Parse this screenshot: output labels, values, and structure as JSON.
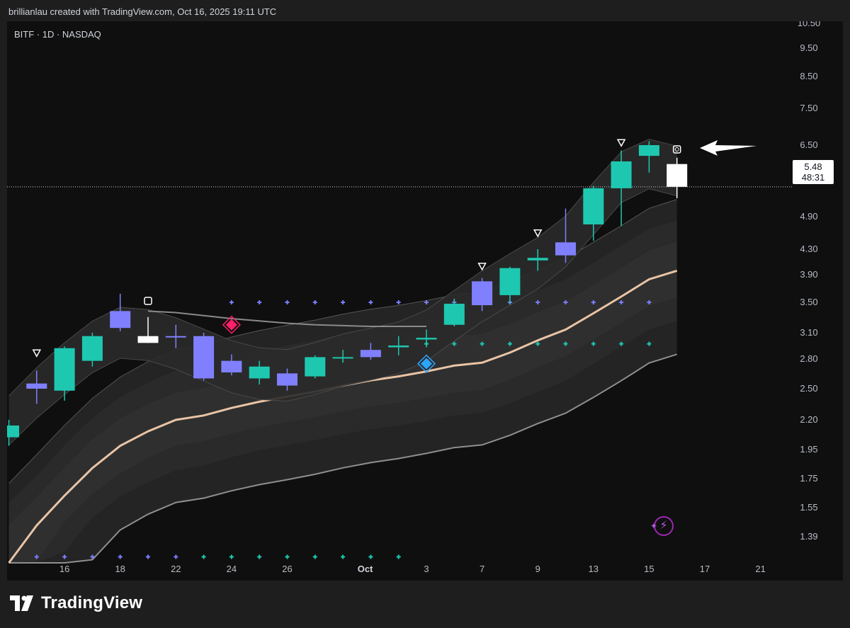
{
  "header": {
    "caption": "brillianlau created with TradingView.com, Oct 16, 2025 19:11 UTC"
  },
  "symbol": "BITF · 1D · NASDAQ",
  "price_tag": {
    "price": "5.48",
    "countdown": "48:31"
  },
  "brand": {
    "name": "TradingView"
  },
  "colors": {
    "background": "#0f0f0f",
    "up_candle": "#1ec8b0",
    "down_candle": "#8080ff",
    "doji_candle": "#ffffff",
    "sma": "#e9c4a6",
    "band_fill": "#3a3a3a",
    "band_line": "#8f8f8f",
    "dots_blue": "#7b7cff",
    "dots_teal": "#1ec8b0",
    "sell_diamond": "#ff1f6a",
    "buy_diamond": "#2aa6ff"
  },
  "chart_data": {
    "type": "candlestick",
    "y_scale": "log",
    "y_ticks": [
      "10.50",
      "9.50",
      "8.50",
      "7.50",
      "6.50",
      "5.90",
      "4.90",
      "4.30",
      "3.90",
      "3.50",
      "3.10",
      "2.80",
      "2.50",
      "2.20",
      "1.95",
      "1.75",
      "1.55",
      "1.39"
    ],
    "x_tick_labels": [
      {
        "i": 2,
        "label": "16"
      },
      {
        "i": 4,
        "label": "18"
      },
      {
        "i": 6,
        "label": "22"
      },
      {
        "i": 8,
        "label": "24"
      },
      {
        "i": 10,
        "label": "26"
      },
      {
        "i": 12.8,
        "label": "Oct"
      },
      {
        "i": 15,
        "label": "3"
      },
      {
        "i": 17,
        "label": "7"
      },
      {
        "i": 19,
        "label": "9"
      },
      {
        "i": 21,
        "label": "13"
      },
      {
        "i": 23,
        "label": "15"
      },
      {
        "i": 25,
        "label": "17"
      },
      {
        "i": 27,
        "label": "21"
      }
    ],
    "candles": [
      {
        "o": 2.05,
        "h": 2.2,
        "l": 1.98,
        "c": 2.15,
        "color": "up"
      },
      {
        "o": 2.5,
        "h": 2.68,
        "l": 2.35,
        "c": 2.55,
        "color": "down"
      },
      {
        "o": 2.48,
        "h": 2.94,
        "l": 2.38,
        "c": 2.92,
        "color": "up"
      },
      {
        "o": 2.78,
        "h": 3.1,
        "l": 2.72,
        "c": 3.06,
        "color": "up"
      },
      {
        "o": 3.38,
        "h": 3.62,
        "l": 3.12,
        "c": 3.16,
        "color": "down"
      },
      {
        "o": 3.06,
        "h": 3.3,
        "l": 2.98,
        "c": 2.98,
        "color": "doji"
      },
      {
        "o": 3.06,
        "h": 3.2,
        "l": 2.92,
        "c": 3.06,
        "color": "doji-down"
      },
      {
        "o": 3.06,
        "h": 3.1,
        "l": 2.58,
        "c": 2.6,
        "color": "down"
      },
      {
        "o": 2.78,
        "h": 2.85,
        "l": 2.63,
        "c": 2.66,
        "color": "down"
      },
      {
        "o": 2.72,
        "h": 2.78,
        "l": 2.54,
        "c": 2.6,
        "color": "up"
      },
      {
        "o": 2.65,
        "h": 2.7,
        "l": 2.48,
        "c": 2.53,
        "color": "down"
      },
      {
        "o": 2.62,
        "h": 2.84,
        "l": 2.6,
        "c": 2.82,
        "color": "up"
      },
      {
        "o": 2.82,
        "h": 2.9,
        "l": 2.76,
        "c": 2.82,
        "color": "doji-up"
      },
      {
        "o": 2.9,
        "h": 2.98,
        "l": 2.79,
        "c": 2.82,
        "color": "down"
      },
      {
        "o": 2.93,
        "h": 3.06,
        "l": 2.84,
        "c": 2.95,
        "color": "up"
      },
      {
        "o": 3.02,
        "h": 3.14,
        "l": 2.93,
        "c": 3.04,
        "color": "up"
      },
      {
        "o": 3.2,
        "h": 3.55,
        "l": 3.18,
        "c": 3.48,
        "color": "up"
      },
      {
        "o": 3.8,
        "h": 3.85,
        "l": 3.38,
        "c": 3.46,
        "color": "down"
      },
      {
        "o": 3.6,
        "h": 4.02,
        "l": 3.48,
        "c": 4.0,
        "color": "up"
      },
      {
        "o": 4.16,
        "h": 4.3,
        "l": 3.96,
        "c": 4.12,
        "color": "up"
      },
      {
        "o": 4.42,
        "h": 5.05,
        "l": 4.08,
        "c": 4.2,
        "color": "down"
      },
      {
        "o": 4.75,
        "h": 5.5,
        "l": 4.45,
        "c": 5.45,
        "color": "up"
      },
      {
        "o": 5.45,
        "h": 6.35,
        "l": 4.72,
        "c": 6.05,
        "color": "up"
      },
      {
        "o": 6.2,
        "h": 6.6,
        "l": 5.78,
        "c": 6.5,
        "color": "up"
      },
      {
        "o": 5.98,
        "h": 6.15,
        "l": 5.25,
        "c": 5.48,
        "color": "doji"
      }
    ],
    "sma": [
      1.3,
      1.45,
      1.63,
      1.82,
      1.98,
      2.1,
      2.2,
      2.24,
      2.31,
      2.37,
      2.42,
      2.47,
      2.53,
      2.58,
      2.62,
      2.67,
      2.73,
      2.76,
      2.87,
      3.01,
      3.14,
      3.35,
      3.58,
      3.83,
      3.96
    ],
    "upper_channel": {
      "start": 5,
      "values": [
        3.38,
        3.36,
        3.32,
        3.28,
        3.25,
        3.22,
        3.2,
        3.19,
        3.18,
        3.18,
        3.18
      ]
    },
    "markers": [
      {
        "i": 1,
        "type": "triangle-down",
        "price": 2.86
      },
      {
        "i": 5,
        "type": "square",
        "price": 3.52
      },
      {
        "i": 8,
        "type": "diamond-sell",
        "price": 3.2
      },
      {
        "i": 15,
        "type": "diamond-buy",
        "price": 2.75
      },
      {
        "i": 17,
        "type": "triangle-down",
        "price": 4.02
      },
      {
        "i": 19,
        "type": "triangle-down",
        "price": 4.58
      },
      {
        "i": 22,
        "type": "triangle-down",
        "price": 6.55
      },
      {
        "i": 24,
        "type": "square-circle",
        "price": 6.38
      }
    ],
    "dot_rows": [
      {
        "price": 3.5,
        "from": 8,
        "to": 23,
        "color": "blue"
      },
      {
        "price": 2.97,
        "from": 15,
        "to": 23,
        "color": "teal"
      },
      {
        "price": 1.32,
        "from": 1,
        "to": 14,
        "color": "mixed"
      }
    ]
  }
}
